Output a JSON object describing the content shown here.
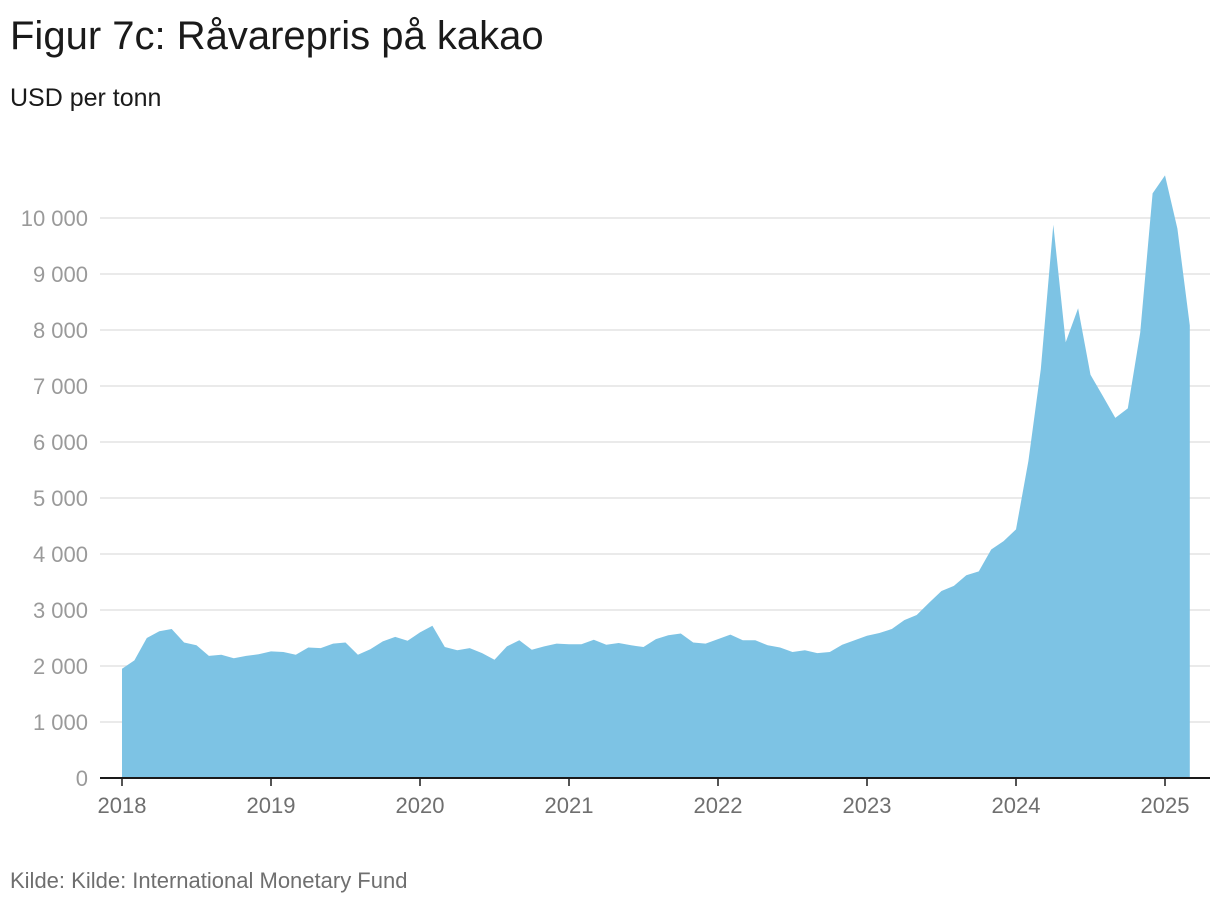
{
  "title": "Figur 7c: Råvarepris på kakao",
  "subtitle": "USD per tonn",
  "source": "Kilde: Kilde: International Monetary Fund",
  "colors": {
    "area": "#7dc3e4",
    "grid": "#e3e3e3",
    "axis": "#1a1a1a"
  },
  "chart_data": {
    "type": "area",
    "title": "Figur 7c: Råvarepris på kakao",
    "ylabel": "USD per tonn",
    "xlabel": "",
    "ylim": [
      0,
      10800
    ],
    "y_ticks": [
      0,
      1000,
      2000,
      3000,
      4000,
      5000,
      6000,
      7000,
      8000,
      9000,
      10000
    ],
    "y_tick_labels": [
      "0",
      "1 000",
      "2 000",
      "3 000",
      "4 000",
      "5 000",
      "6 000",
      "7 000",
      "8 000",
      "9 000",
      "10 000"
    ],
    "x_tick_labels": [
      "2018",
      "2019",
      "2020",
      "2021",
      "2022",
      "2023",
      "2024",
      "2025"
    ],
    "grid": true,
    "x": [
      "2018-01",
      "2018-02",
      "2018-03",
      "2018-04",
      "2018-05",
      "2018-06",
      "2018-07",
      "2018-08",
      "2018-09",
      "2018-10",
      "2018-11",
      "2018-12",
      "2019-01",
      "2019-02",
      "2019-03",
      "2019-04",
      "2019-05",
      "2019-06",
      "2019-07",
      "2019-08",
      "2019-09",
      "2019-10",
      "2019-11",
      "2019-12",
      "2020-01",
      "2020-02",
      "2020-03",
      "2020-04",
      "2020-05",
      "2020-06",
      "2020-07",
      "2020-08",
      "2020-09",
      "2020-10",
      "2020-11",
      "2020-12",
      "2021-01",
      "2021-02",
      "2021-03",
      "2021-04",
      "2021-05",
      "2021-06",
      "2021-07",
      "2021-08",
      "2021-09",
      "2021-10",
      "2021-11",
      "2021-12",
      "2022-01",
      "2022-02",
      "2022-03",
      "2022-04",
      "2022-05",
      "2022-06",
      "2022-07",
      "2022-08",
      "2022-09",
      "2022-10",
      "2022-11",
      "2022-12",
      "2023-01",
      "2023-02",
      "2023-03",
      "2023-04",
      "2023-05",
      "2023-06",
      "2023-07",
      "2023-08",
      "2023-09",
      "2023-10",
      "2023-11",
      "2023-12",
      "2024-01",
      "2024-02",
      "2024-03",
      "2024-04",
      "2024-05",
      "2024-06",
      "2024-07",
      "2024-08",
      "2024-09",
      "2024-10",
      "2024-11",
      "2024-12",
      "2025-01",
      "2025-02",
      "2025-03"
    ],
    "series": [
      {
        "values": [
          1950,
          2100,
          2500,
          2620,
          2660,
          2420,
          2370,
          2180,
          2200,
          2140,
          2180,
          2210,
          2260,
          2250,
          2200,
          2330,
          2320,
          2400,
          2420,
          2200,
          2300,
          2440,
          2520,
          2450,
          2600,
          2720,
          2340,
          2280,
          2320,
          2230,
          2110,
          2350,
          2460,
          2290,
          2350,
          2400,
          2390,
          2390,
          2470,
          2380,
          2410,
          2370,
          2340,
          2480,
          2550,
          2580,
          2420,
          2400,
          2480,
          2560,
          2460,
          2460,
          2370,
          2330,
          2250,
          2280,
          2230,
          2250,
          2380,
          2460,
          2540,
          2590,
          2660,
          2820,
          2910,
          3130,
          3340,
          3430,
          3620,
          3690,
          4080,
          4230,
          4440,
          5660,
          7300,
          9880,
          7780,
          8390,
          7200,
          6820,
          6430,
          6600,
          7950,
          10440,
          10760,
          9810,
          8080
        ]
      }
    ]
  }
}
